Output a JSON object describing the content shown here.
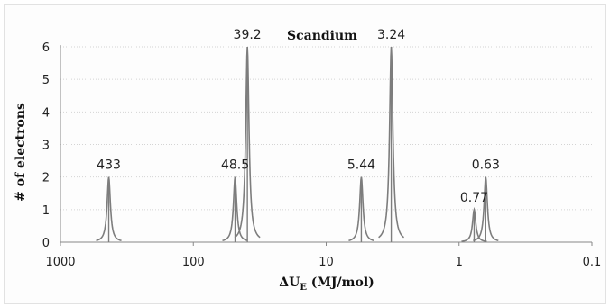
{
  "chart_data": {
    "type": "line",
    "title": "Scandium",
    "xlabel": "ΔU",
    "xlabel_sub": "E",
    "xlabel_unit": " (MJ/mol)",
    "ylabel": "# of electrons",
    "x_scale": "log",
    "x_reversed": true,
    "xlim": [
      1000,
      0.1
    ],
    "ylim": [
      0,
      6
    ],
    "x_ticks": [
      "1000",
      "100",
      "10",
      "1",
      "0.1"
    ],
    "x_tick_values": [
      1000,
      100,
      10,
      1,
      0.1
    ],
    "y_ticks": [
      "0",
      "1",
      "2",
      "3",
      "4",
      "5",
      "6"
    ],
    "y_tick_values": [
      0,
      1,
      2,
      3,
      4,
      5,
      6
    ],
    "grid": "horizontal",
    "legend": "none",
    "series": [
      {
        "peaks": [
          {
            "x": 433,
            "y": 2,
            "label": "433"
          },
          {
            "x": 48.5,
            "y": 2,
            "label": "48.5"
          },
          {
            "x": 39.2,
            "y": 6,
            "label": "39.2"
          },
          {
            "x": 5.44,
            "y": 2,
            "label": "5.44"
          },
          {
            "x": 3.24,
            "y": 6,
            "label": "3.24"
          },
          {
            "x": 0.77,
            "y": 1,
            "label": "0.77"
          },
          {
            "x": 0.63,
            "y": 2,
            "label": "0.63"
          }
        ]
      }
    ],
    "colors": {
      "peak": "#7d7d7d"
    }
  }
}
